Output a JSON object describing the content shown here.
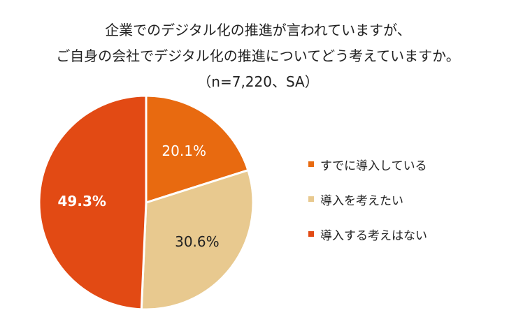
{
  "title": {
    "line1": "企業でのデジタル化の推進が言われていますが、",
    "line2": "ご自身の会社でデジタル化の推進についてどう考えていますか。",
    "line3": "（n=7,220、SA）"
  },
  "chart_data": {
    "type": "pie",
    "categories": [
      "すでに導入している",
      "導入を考えたい",
      "導入する考えはない"
    ],
    "values": [
      20.1,
      30.6,
      49.3
    ],
    "labels": [
      "20.1%",
      "30.6%",
      "49.3%"
    ],
    "colors": [
      "#e86a10",
      "#e8c98f",
      "#e24a14"
    ],
    "label_colors": [
      "#ffffff",
      "#222222",
      "#ffffff"
    ],
    "start_angle": "12 o'clock, clockwise",
    "legend_position": "right"
  }
}
